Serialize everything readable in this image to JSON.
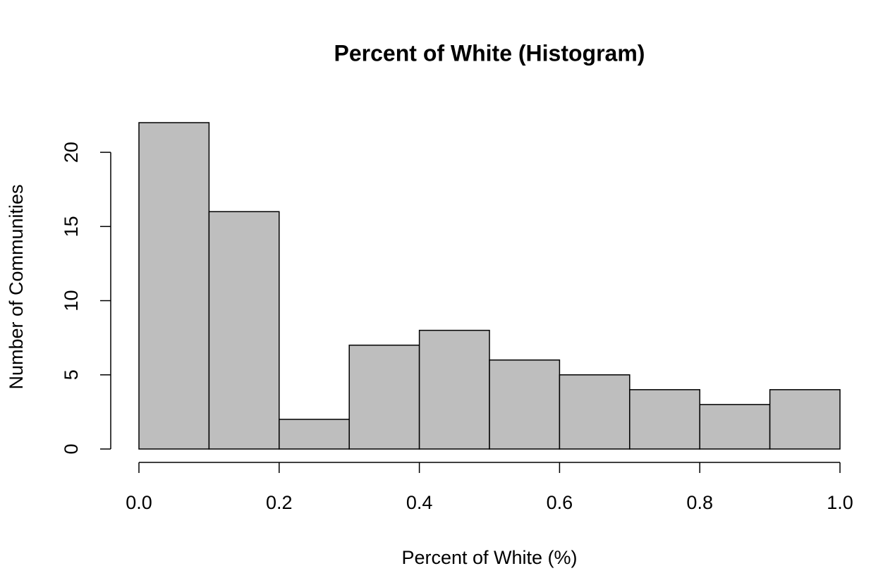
{
  "chart_data": {
    "type": "histogram",
    "title": "Percent of White (Histogram)",
    "x_label": "Percent of White (%)",
    "y_label": "Number of Communities",
    "bins": [
      0,
      0.1,
      0.2,
      0.3,
      0.4,
      0.5,
      0.6,
      0.7,
      0.8,
      0.9,
      1.0
    ],
    "counts": [
      22,
      16,
      2,
      7,
      8,
      6,
      5,
      4,
      3,
      4
    ],
    "color": "#bebebe",
    "edge_color": "#000000",
    "xlim": [
      0,
      1
    ],
    "xticks": [
      {
        "value": 0,
        "label": "0.0"
      },
      0.2,
      0.4,
      0.6,
      0.8,
      {
        "value": 1,
        "label": "1.0"
      }
    ],
    "ylim": [
      0,
      22
    ],
    "yticks": [
      0,
      5,
      10,
      15,
      20
    ]
  }
}
